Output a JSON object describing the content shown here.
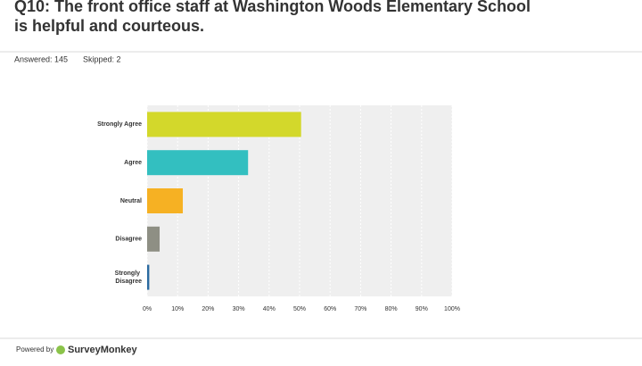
{
  "header": {
    "title": "Q10: The front office staff at Washington Woods Elementary School is helpful and courteous.",
    "answered": "Answered: 145",
    "skipped": "Skipped: 2"
  },
  "chart_data": {
    "type": "bar",
    "orientation": "horizontal",
    "categories": [
      "Strongly Agree",
      "Agree",
      "Neutral",
      "Disagree",
      "Strongly Disagree"
    ],
    "values": [
      50.5,
      33.1,
      11.7,
      4.1,
      0.7
    ],
    "colors": [
      "#d3d82b",
      "#33bfc0",
      "#f6b123",
      "#8e8f84",
      "#2a6aa0"
    ],
    "xlim": [
      0,
      100
    ],
    "xticks": [
      {
        "value": 0,
        "label": "0%"
      },
      {
        "value": 10,
        "label": "10%"
      },
      {
        "value": 20,
        "label": "20%"
      },
      {
        "value": 30,
        "label": "30%"
      },
      {
        "value": 40,
        "label": "40%"
      },
      {
        "value": 50,
        "label": "50%"
      },
      {
        "value": 60,
        "label": "60%"
      },
      {
        "value": 70,
        "label": "70%"
      },
      {
        "value": 80,
        "label": "80%"
      },
      {
        "value": 90,
        "label": "90%"
      },
      {
        "value": 100,
        "label": "100%"
      }
    ],
    "grid": true
  },
  "footer": {
    "powered_by": "Powered by",
    "brand": "SurveyMonkey"
  }
}
